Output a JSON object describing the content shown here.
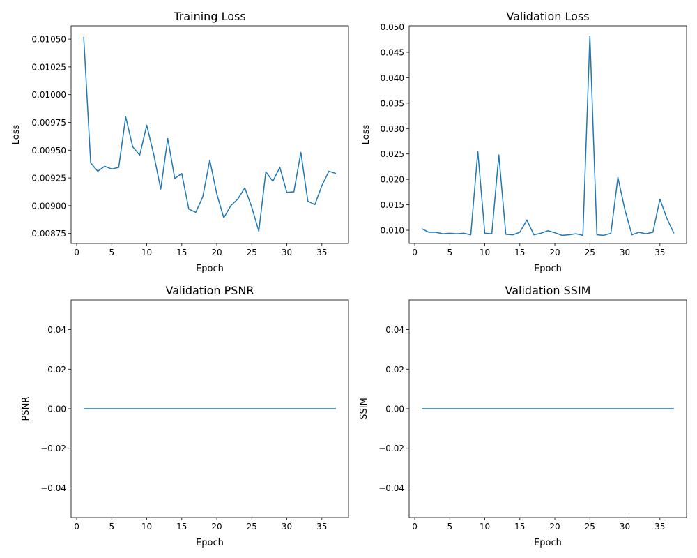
{
  "chart_data": [
    {
      "type": "line",
      "title": "Training Loss",
      "xlabel": "Epoch",
      "ylabel": "Loss",
      "xlim": [
        -0.8,
        38.8
      ],
      "ylim": [
        0.00866,
        0.01062
      ],
      "xticks": [
        0,
        5,
        10,
        15,
        20,
        25,
        30,
        35
      ],
      "xtick_labels": [
        "0",
        "5",
        "10",
        "15",
        "20",
        "25",
        "30",
        "35"
      ],
      "yticks": [
        0.00875,
        0.009,
        0.00925,
        0.0095,
        0.00975,
        0.01,
        0.01025,
        0.0105
      ],
      "ytick_labels": [
        "0.00875",
        "0.00900",
        "0.00925",
        "0.00950",
        "0.00975",
        "0.01000",
        "0.01025",
        "0.01050"
      ],
      "grid": false,
      "color": "#1f77b4",
      "x": [
        1,
        2,
        3,
        4,
        5,
        6,
        7,
        8,
        9,
        10,
        11,
        12,
        13,
        14,
        15,
        16,
        17,
        18,
        19,
        20,
        21,
        22,
        23,
        24,
        25,
        26,
        27,
        28,
        29,
        30,
        31,
        32,
        33,
        34,
        35,
        36,
        37
      ],
      "y": [
        0.01052,
        0.009385,
        0.00931,
        0.009355,
        0.00933,
        0.009345,
        0.0098,
        0.00953,
        0.009455,
        0.009725,
        0.00946,
        0.00915,
        0.009605,
        0.009245,
        0.00929,
        0.00897,
        0.00894,
        0.00908,
        0.00941,
        0.009105,
        0.00889,
        0.009,
        0.00906,
        0.00916,
        0.008985,
        0.00877,
        0.009305,
        0.00922,
        0.009345,
        0.00912,
        0.009125,
        0.00948,
        0.00904,
        0.00901,
        0.00918,
        0.00931,
        0.00929
      ]
    },
    {
      "type": "line",
      "title": "Validation Loss",
      "xlabel": "Epoch",
      "ylabel": "Loss",
      "xlim": [
        -0.8,
        38.8
      ],
      "ylim": [
        0.0074,
        0.0502
      ],
      "xticks": [
        0,
        5,
        10,
        15,
        20,
        25,
        30,
        35
      ],
      "xtick_labels": [
        "0",
        "5",
        "10",
        "15",
        "20",
        "25",
        "30",
        "35"
      ],
      "yticks": [
        0.01,
        0.015,
        0.02,
        0.025,
        0.03,
        0.035,
        0.04,
        0.045,
        0.05
      ],
      "ytick_labels": [
        "0.010",
        "0.015",
        "0.020",
        "0.025",
        "0.030",
        "0.035",
        "0.040",
        "0.045",
        "0.050"
      ],
      "grid": false,
      "color": "#1f77b4",
      "x": [
        1,
        2,
        3,
        4,
        5,
        6,
        7,
        8,
        9,
        10,
        11,
        12,
        13,
        14,
        15,
        16,
        17,
        18,
        19,
        20,
        21,
        22,
        23,
        24,
        25,
        26,
        27,
        28,
        29,
        30,
        31,
        32,
        33,
        34,
        35,
        36,
        37
      ],
      "y": [
        0.0103,
        0.0096,
        0.0096,
        0.0093,
        0.0094,
        0.0093,
        0.0094,
        0.0091,
        0.0255,
        0.0094,
        0.0093,
        0.0248,
        0.0092,
        0.0091,
        0.0096,
        0.012,
        0.0091,
        0.0094,
        0.0099,
        0.0095,
        0.009,
        0.0091,
        0.0093,
        0.009,
        0.0482,
        0.0091,
        0.009,
        0.0094,
        0.0204,
        0.014,
        0.0091,
        0.0096,
        0.0093,
        0.0096,
        0.0161,
        0.0123,
        0.0094
      ]
    },
    {
      "type": "line",
      "title": "Validation PSNR",
      "xlabel": "Epoch",
      "ylabel": "PSNR",
      "xlim": [
        -0.8,
        38.8
      ],
      "ylim": [
        -0.055,
        0.055
      ],
      "xticks": [
        0,
        5,
        10,
        15,
        20,
        25,
        30,
        35
      ],
      "xtick_labels": [
        "0",
        "5",
        "10",
        "15",
        "20",
        "25",
        "30",
        "35"
      ],
      "yticks": [
        -0.04,
        -0.02,
        0,
        0.02,
        0.04
      ],
      "ytick_labels": [
        "−0.04",
        "−0.02",
        "0.00",
        "0.02",
        "0.04"
      ],
      "grid": false,
      "color": "#1f77b4",
      "x": [
        1,
        2,
        3,
        4,
        5,
        6,
        7,
        8,
        9,
        10,
        11,
        12,
        13,
        14,
        15,
        16,
        17,
        18,
        19,
        20,
        21,
        22,
        23,
        24,
        25,
        26,
        27,
        28,
        29,
        30,
        31,
        32,
        33,
        34,
        35,
        36,
        37
      ],
      "y": [
        0,
        0,
        0,
        0,
        0,
        0,
        0,
        0,
        0,
        0,
        0,
        0,
        0,
        0,
        0,
        0,
        0,
        0,
        0,
        0,
        0,
        0,
        0,
        0,
        0,
        0,
        0,
        0,
        0,
        0,
        0,
        0,
        0,
        0,
        0,
        0,
        0
      ]
    },
    {
      "type": "line",
      "title": "Validation SSIM",
      "xlabel": "Epoch",
      "ylabel": "SSIM",
      "xlim": [
        -0.8,
        38.8
      ],
      "ylim": [
        -0.055,
        0.055
      ],
      "xticks": [
        0,
        5,
        10,
        15,
        20,
        25,
        30,
        35
      ],
      "xtick_labels": [
        "0",
        "5",
        "10",
        "15",
        "20",
        "25",
        "30",
        "35"
      ],
      "yticks": [
        -0.04,
        -0.02,
        0,
        0.02,
        0.04
      ],
      "ytick_labels": [
        "−0.04",
        "−0.02",
        "0.00",
        "0.02",
        "0.04"
      ],
      "grid": false,
      "color": "#1f77b4",
      "x": [
        1,
        2,
        3,
        4,
        5,
        6,
        7,
        8,
        9,
        10,
        11,
        12,
        13,
        14,
        15,
        16,
        17,
        18,
        19,
        20,
        21,
        22,
        23,
        24,
        25,
        26,
        27,
        28,
        29,
        30,
        31,
        32,
        33,
        34,
        35,
        36,
        37
      ],
      "y": [
        0,
        0,
        0,
        0,
        0,
        0,
        0,
        0,
        0,
        0,
        0,
        0,
        0,
        0,
        0,
        0,
        0,
        0,
        0,
        0,
        0,
        0,
        0,
        0,
        0,
        0,
        0,
        0,
        0,
        0,
        0,
        0,
        0,
        0,
        0,
        0,
        0
      ]
    }
  ]
}
